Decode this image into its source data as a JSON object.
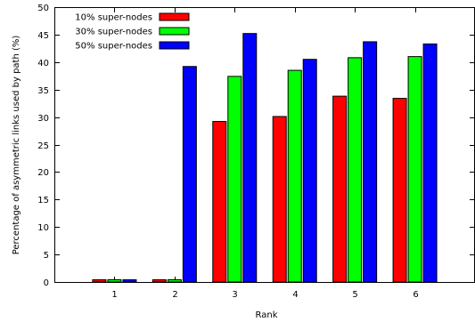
{
  "chart_data": {
    "type": "bar",
    "xlabel": "Rank",
    "ylabel": "Percentage of asymmetric links used by path (%)",
    "categories": [
      "1",
      "2",
      "3",
      "4",
      "5",
      "6"
    ],
    "ylim": [
      0,
      50
    ],
    "yticks": [
      0,
      5,
      10,
      15,
      20,
      25,
      30,
      35,
      40,
      45,
      50
    ],
    "grid": false,
    "legend_position": "top-left",
    "series": [
      {
        "name": "10% super-nodes",
        "color": "#ff0000",
        "values": [
          0.4,
          0.4,
          29.2,
          30.1,
          33.8,
          33.4
        ]
      },
      {
        "name": "30% super-nodes",
        "color": "#00ff00",
        "values": [
          0.4,
          0.4,
          37.4,
          38.5,
          40.8,
          41.0
        ]
      },
      {
        "name": "50% super-nodes",
        "color": "#0000ff",
        "values": [
          0.4,
          39.2,
          45.2,
          40.5,
          43.7,
          43.3
        ]
      }
    ]
  }
}
